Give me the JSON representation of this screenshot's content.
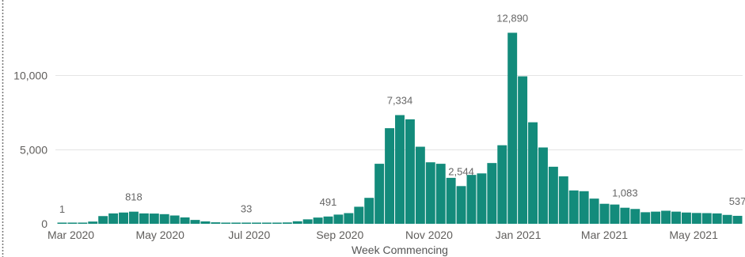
{
  "chart_data": {
    "type": "bar",
    "xlabel": "Week Commencing",
    "x": [
      "2020-02-24",
      "2020-03-02",
      "2020-03-09",
      "2020-03-16",
      "2020-03-23",
      "2020-03-30",
      "2020-04-06",
      "2020-04-13",
      "2020-04-20",
      "2020-04-27",
      "2020-05-04",
      "2020-05-11",
      "2020-05-18",
      "2020-05-25",
      "2020-06-01",
      "2020-06-08",
      "2020-06-15",
      "2020-06-22",
      "2020-06-29",
      "2020-07-06",
      "2020-07-13",
      "2020-07-20",
      "2020-07-27",
      "2020-08-03",
      "2020-08-10",
      "2020-08-17",
      "2020-08-24",
      "2020-08-31",
      "2020-09-07",
      "2020-09-14",
      "2020-09-21",
      "2020-09-28",
      "2020-10-05",
      "2020-10-12",
      "2020-10-19",
      "2020-10-26",
      "2020-11-02",
      "2020-11-09",
      "2020-11-16",
      "2020-11-23",
      "2020-11-30",
      "2020-12-07",
      "2020-12-14",
      "2020-12-21",
      "2020-12-28",
      "2021-01-04",
      "2021-01-11",
      "2021-01-18",
      "2021-01-25",
      "2021-02-01",
      "2021-02-08",
      "2021-02-15",
      "2021-02-22",
      "2021-03-01",
      "2021-03-08",
      "2021-03-15",
      "2021-03-22",
      "2021-03-29",
      "2021-04-05",
      "2021-04-12",
      "2021-04-19",
      "2021-04-26",
      "2021-05-03",
      "2021-05-10",
      "2021-05-17",
      "2021-05-24",
      "2021-05-31"
    ],
    "values": [
      1,
      5,
      40,
      150,
      520,
      700,
      760,
      818,
      700,
      690,
      650,
      560,
      430,
      260,
      160,
      100,
      70,
      45,
      33,
      40,
      45,
      60,
      90,
      170,
      300,
      420,
      491,
      620,
      720,
      1150,
      1750,
      4050,
      6450,
      7334,
      7050,
      5200,
      4150,
      4050,
      3100,
      2544,
      3300,
      3400,
      4100,
      5300,
      12890,
      9950,
      6850,
      5150,
      3850,
      3200,
      2250,
      2200,
      1700,
      1350,
      1300,
      1083,
      1000,
      780,
      820,
      880,
      820,
      760,
      730,
      720,
      700,
      600,
      537
    ],
    "ylim": [
      0,
      13500
    ],
    "y_ticks": [
      {
        "y": 0,
        "label": "0"
      },
      {
        "y": 5000,
        "label": "5,000"
      },
      {
        "y": 10000,
        "label": "10,000"
      }
    ],
    "x_ticks": [
      {
        "x": "2020-03-01",
        "label": "Mar 2020"
      },
      {
        "x": "2020-05-01",
        "label": "May 2020"
      },
      {
        "x": "2020-07-01",
        "label": "Jul 2020"
      },
      {
        "x": "2020-09-01",
        "label": "Sep 2020"
      },
      {
        "x": "2020-11-01",
        "label": "Nov 2020"
      },
      {
        "x": "2021-01-01",
        "label": "Jan 2021"
      },
      {
        "x": "2021-03-01",
        "label": "Mar 2021"
      },
      {
        "x": "2021-05-01",
        "label": "May 2021"
      }
    ],
    "data_labels": [
      {
        "x": "2020-02-24",
        "text": "1"
      },
      {
        "x": "2020-04-13",
        "text": "818"
      },
      {
        "x": "2020-06-29",
        "text": "33"
      },
      {
        "x": "2020-08-24",
        "text": "491"
      },
      {
        "x": "2020-10-12",
        "text": "7,334"
      },
      {
        "x": "2020-11-23",
        "text": "2,544"
      },
      {
        "x": "2020-12-28",
        "text": "12,890"
      },
      {
        "x": "2021-03-15",
        "text": "1,083"
      },
      {
        "x": "2021-05-31",
        "text": "537"
      }
    ],
    "grid": true,
    "colors": {
      "bar": "#138B7B",
      "axis_text": "#605E5C",
      "data_label": "#666666",
      "gridline": "#E4E4E4",
      "panel_border": "#777777"
    }
  }
}
